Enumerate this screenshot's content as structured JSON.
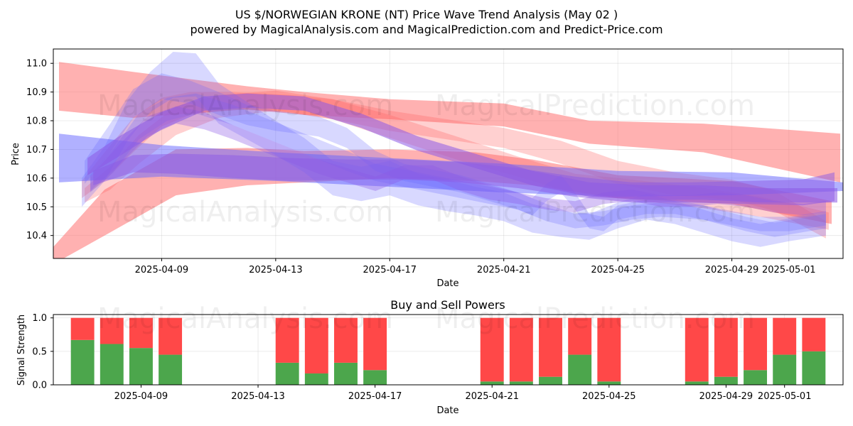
{
  "chart_data": [
    {
      "type": "area",
      "title": "US $/NORWEGIAN KRONE (NT) Price Wave Trend Analysis (May 02 )",
      "subtitle": "powered by MagicalAnalysis.com and MagicalPrediction.com and Predict-Price.com",
      "xlabel": "Date",
      "ylabel": "Price",
      "ylim": [
        10.32,
        11.05
      ],
      "yticks": [
        "10.4",
        "10.5",
        "10.6",
        "10.7",
        "10.8",
        "10.9",
        "11.0"
      ],
      "xticks": [
        "2025-04-09",
        "2025-04-13",
        "2025-04-17",
        "2025-04-21",
        "2025-04-25",
        "2025-04-29",
        "2025-05-01"
      ],
      "xtick_days": [
        8,
        12,
        16,
        20,
        24,
        28,
        30
      ],
      "xlim_days": [
        4.2,
        31.9
      ],
      "grid": true,
      "colors": {
        "red": "#ff6464",
        "blue": "#6464ff",
        "purple": "#8c5ae6"
      },
      "series": [
        {
          "name": "red band 1",
          "color": "red",
          "opacity": 0.5,
          "x": [
            4.4,
            7,
            11,
            13,
            16,
            20,
            23,
            27,
            31.8
          ],
          "y": [
            10.92,
            10.89,
            10.88,
            10.86,
            10.84,
            10.82,
            10.76,
            10.74,
            10.67
          ],
          "w": [
            0.17,
            0.16,
            0.08,
            0.08,
            0.07,
            0.08,
            0.08,
            0.1,
            0.17
          ]
        },
        {
          "name": "red band 2",
          "color": "red",
          "opacity": 0.5,
          "x": [
            4.2,
            6,
            8.5,
            11,
            13,
            16,
            19,
            21,
            24,
            28,
            31.5
          ],
          "y": [
            10.33,
            10.48,
            10.62,
            10.64,
            10.64,
            10.65,
            10.64,
            10.62,
            10.57,
            10.55,
            10.48
          ],
          "w": [
            0.06,
            0.16,
            0.16,
            0.13,
            0.11,
            0.1,
            0.1,
            0.09,
            0.08,
            0.08,
            0.08
          ]
        },
        {
          "name": "red wave 3",
          "color": "red",
          "opacity": 0.3,
          "x": [
            5.2,
            6,
            7,
            8,
            9,
            10.5,
            12.5,
            14,
            16,
            18,
            20,
            22,
            24,
            26,
            28,
            29.5,
            31.3
          ],
          "y": [
            10.56,
            10.64,
            10.75,
            10.83,
            10.86,
            10.87,
            10.86,
            10.84,
            10.8,
            10.77,
            10.74,
            10.69,
            10.62,
            10.58,
            10.56,
            10.52,
            10.42
          ],
          "w": [
            0.06,
            0.1,
            0.12,
            0.1,
            0.08,
            0.06,
            0.06,
            0.07,
            0.07,
            0.07,
            0.07,
            0.08,
            0.08,
            0.08,
            0.07,
            0.07,
            0.06
          ]
        },
        {
          "name": "red wave 4",
          "color": "red",
          "opacity": 0.3,
          "x": [
            5.3,
            6.2,
            7.2,
            8.5,
            10,
            12,
            14,
            16,
            18.5,
            20.5,
            22.5,
            24.5,
            27,
            29,
            31.4
          ],
          "y": [
            10.54,
            10.6,
            10.7,
            10.8,
            10.85,
            10.87,
            10.84,
            10.78,
            10.7,
            10.64,
            10.58,
            10.56,
            10.53,
            10.5,
            10.45
          ],
          "w": [
            0.05,
            0.08,
            0.1,
            0.1,
            0.08,
            0.07,
            0.07,
            0.08,
            0.08,
            0.07,
            0.07,
            0.07,
            0.07,
            0.07,
            0.06
          ]
        },
        {
          "name": "blue band 1",
          "color": "blue",
          "opacity": 0.5,
          "x": [
            4.4,
            8,
            12,
            16,
            20,
            24,
            28,
            31.9
          ],
          "y": [
            10.67,
            10.66,
            10.64,
            10.62,
            10.6,
            10.58,
            10.58,
            10.57
          ],
          "w": [
            0.17,
            0.11,
            0.1,
            0.1,
            0.1,
            0.09,
            0.08,
            0.03
          ]
        },
        {
          "name": "blue wave 2",
          "color": "blue",
          "opacity": 0.25,
          "x": [
            5.2,
            6,
            6.8,
            7.6,
            8.4,
            9.2,
            10,
            11,
            12,
            13,
            14,
            15,
            16,
            17,
            18,
            19,
            20,
            21,
            22,
            23,
            24,
            25,
            26,
            27,
            28,
            29,
            30,
            31.3
          ],
          "y": [
            10.55,
            10.65,
            10.8,
            10.9,
            10.96,
            10.96,
            10.86,
            10.8,
            10.74,
            10.68,
            10.6,
            10.58,
            10.6,
            10.56,
            10.54,
            10.52,
            10.5,
            10.46,
            10.44,
            10.43,
            10.47,
            10.5,
            10.48,
            10.45,
            10.42,
            10.4,
            10.42,
            10.44
          ],
          "w": [
            0.1,
            0.12,
            0.14,
            0.14,
            0.16,
            0.15,
            0.14,
            0.13,
            0.12,
            0.12,
            0.12,
            0.12,
            0.12,
            0.11,
            0.11,
            0.1,
            0.1,
            0.1,
            0.09,
            0.09,
            0.09,
            0.09,
            0.08,
            0.08,
            0.08,
            0.08,
            0.08,
            0.08
          ]
        },
        {
          "name": "blue wave 3",
          "color": "blue",
          "opacity": 0.25,
          "x": [
            5.3,
            6.2,
            7,
            8,
            9,
            10,
            11,
            12,
            13.5,
            14.5,
            15.5,
            16.5,
            17.5,
            18.5,
            19.5,
            20.5,
            21.5,
            22.5,
            23.5,
            24.5,
            25.5,
            27,
            28.5,
            29.5,
            31.3
          ],
          "y": [
            10.62,
            10.74,
            10.86,
            10.92,
            10.9,
            10.86,
            10.82,
            10.8,
            10.78,
            10.74,
            10.66,
            10.62,
            10.6,
            10.58,
            10.55,
            10.52,
            10.48,
            10.45,
            10.46,
            10.48,
            10.49,
            10.48,
            10.44,
            10.42,
            10.45
          ],
          "w": [
            0.08,
            0.1,
            0.1,
            0.09,
            0.08,
            0.08,
            0.07,
            0.07,
            0.07,
            0.07,
            0.07,
            0.06,
            0.06,
            0.06,
            0.06,
            0.06,
            0.06,
            0.05,
            0.05,
            0.05,
            0.05,
            0.05,
            0.05,
            0.05,
            0.05
          ]
        },
        {
          "name": "blue wave 4",
          "color": "blue",
          "opacity": 0.25,
          "x": [
            5.5,
            6.3,
            7.2,
            8.2,
            9.2,
            10.5,
            11.5,
            12.5,
            13.5,
            14.5,
            15.5,
            16.5,
            17.5,
            18.5,
            19.5,
            20.5,
            21,
            21.5,
            22,
            22.5,
            23,
            23.5,
            24,
            25,
            26,
            27,
            28,
            29,
            30,
            31.3
          ],
          "y": [
            10.58,
            10.66,
            10.78,
            10.84,
            10.86,
            10.82,
            10.78,
            10.74,
            10.7,
            10.66,
            10.62,
            10.6,
            10.58,
            10.56,
            10.54,
            10.52,
            10.5,
            10.55,
            10.58,
            10.52,
            10.45,
            10.44,
            10.48,
            10.5,
            10.5,
            10.48,
            10.46,
            10.44,
            10.44,
            10.46
          ],
          "w": [
            0.06,
            0.08,
            0.09,
            0.08,
            0.07,
            0.07,
            0.07,
            0.07,
            0.07,
            0.07,
            0.06,
            0.06,
            0.06,
            0.06,
            0.06,
            0.06,
            0.06,
            0.06,
            0.06,
            0.06,
            0.05,
            0.05,
            0.05,
            0.05,
            0.05,
            0.05,
            0.05,
            0.05,
            0.05,
            0.05
          ]
        },
        {
          "name": "purple band 1",
          "color": "purple",
          "opacity": 0.55,
          "x": [
            5.4,
            6.5,
            8,
            9.5,
            11,
            13,
            15,
            17,
            19,
            21,
            23,
            25,
            27,
            29,
            31.7
          ],
          "y": [
            10.64,
            10.71,
            10.8,
            10.86,
            10.87,
            10.86,
            10.8,
            10.72,
            10.66,
            10.6,
            10.56,
            10.55,
            10.55,
            10.54,
            10.54
          ],
          "w": [
            0.06,
            0.07,
            0.06,
            0.05,
            0.05,
            0.05,
            0.05,
            0.05,
            0.05,
            0.05,
            0.05,
            0.05,
            0.05,
            0.05,
            0.05
          ]
        },
        {
          "name": "purple band 2",
          "color": "purple",
          "opacity": 0.5,
          "x": [
            5.6,
            7,
            8.5,
            10.5,
            12.5,
            14.5,
            16.5,
            18.5,
            20.5,
            22.5,
            24.5,
            26.5,
            28.5,
            30.5,
            31.6
          ],
          "y": [
            10.6,
            10.65,
            10.65,
            10.64,
            10.63,
            10.63,
            10.63,
            10.62,
            10.6,
            10.57,
            10.55,
            10.55,
            10.55,
            10.55,
            10.57
          ],
          "w": [
            0.05,
            0.06,
            0.07,
            0.08,
            0.08,
            0.07,
            0.07,
            0.07,
            0.07,
            0.07,
            0.07,
            0.07,
            0.08,
            0.09,
            0.1
          ]
        },
        {
          "name": "purple wave 3",
          "color": "purple",
          "opacity": 0.35,
          "x": [
            5.5,
            6.5,
            7.5,
            8.5,
            9.5,
            10.5,
            11.5,
            12.5,
            13.5,
            14.5,
            15.5,
            16.5,
            17.5,
            18.5,
            19.5,
            20.5,
            21.5,
            22.5,
            23.5,
            24.5,
            25.5,
            26.5,
            27.5,
            28.5,
            29.5,
            30.5,
            31.3
          ],
          "y": [
            10.58,
            10.68,
            10.78,
            10.82,
            10.8,
            10.76,
            10.72,
            10.68,
            10.64,
            10.61,
            10.58,
            10.62,
            10.62,
            10.58,
            10.55,
            10.53,
            10.51,
            10.5,
            10.53,
            10.54,
            10.52,
            10.52,
            10.53,
            10.52,
            10.5,
            10.49,
            10.5
          ],
          "w": [
            0.05,
            0.07,
            0.07,
            0.06,
            0.06,
            0.05,
            0.05,
            0.05,
            0.05,
            0.05,
            0.05,
            0.05,
            0.05,
            0.05,
            0.05,
            0.04,
            0.04,
            0.04,
            0.04,
            0.04,
            0.04,
            0.04,
            0.04,
            0.04,
            0.04,
            0.04,
            0.04
          ]
        }
      ]
    },
    {
      "type": "bar",
      "title": "Buy and Sell Powers",
      "xlabel": "Date",
      "ylabel": "Signal Strength",
      "ylim": [
        0,
        1.05
      ],
      "yticks": [
        "0.0",
        "0.5",
        "1.0"
      ],
      "xticks": [
        "2025-04-09",
        "2025-04-13",
        "2025-04-17",
        "2025-04-21",
        "2025-04-25",
        "2025-04-29",
        "2025-05-01"
      ],
      "xtick_days": [
        8,
        12,
        16,
        20,
        24,
        28,
        30
      ],
      "xlim_days": [
        5.0,
        32.0
      ],
      "grid": true,
      "colors": {
        "buy": "#4ca64c",
        "sell": "#ff4848"
      },
      "categories": [
        "2025-04-07",
        "2025-04-08",
        "2025-04-09",
        "2025-04-10",
        "2025-04-14",
        "2025-04-15",
        "2025-04-16",
        "2025-04-17",
        "2025-04-21",
        "2025-04-22",
        "2025-04-23",
        "2025-04-24",
        "2025-04-25",
        "2025-04-28",
        "2025-04-29",
        "2025-04-30",
        "2025-05-01",
        "2025-05-02"
      ],
      "days": [
        6,
        7,
        8,
        9,
        13,
        14,
        15,
        16,
        20,
        21,
        22,
        23,
        24,
        27,
        28,
        29,
        30,
        31
      ],
      "series": [
        {
          "name": "Buy",
          "values": [
            0.67,
            0.61,
            0.55,
            0.45,
            0.33,
            0.17,
            0.33,
            0.22,
            0.05,
            0.05,
            0.12,
            0.45,
            0.05,
            0.05,
            0.12,
            0.22,
            0.45,
            0.5
          ]
        },
        {
          "name": "Sell",
          "values": [
            0.33,
            0.39,
            0.45,
            0.55,
            0.67,
            0.83,
            0.67,
            0.78,
            0.95,
            0.95,
            0.88,
            0.55,
            0.95,
            0.95,
            0.88,
            0.78,
            0.55,
            0.5
          ]
        }
      ]
    }
  ],
  "watermarks": {
    "top_left": "MagicalAnalysis.com",
    "top_right": "MagicalPrediction.com",
    "mid_left": "MagicalAnalysis.com",
    "mid_right": "MagicalPrediction.com",
    "bottom_left": "MagicalAnalysis.com",
    "bottom_right": "MagicalPrediction.com"
  }
}
